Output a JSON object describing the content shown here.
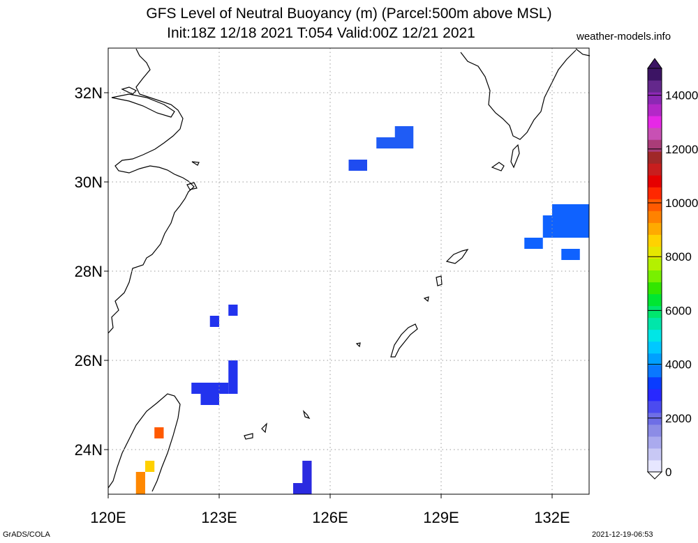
{
  "title_line1": "GFS Level of Neutral Buoyancy (m) (Parcel:500m above MSL)",
  "title_line2": "Init:18Z 12/18 2021 T:054 Valid:00Z 12/21 2021",
  "credit": "weather-models.info",
  "footer_left": "GrADS/COLA",
  "footer_right": "2021-12-19-06:53",
  "map": {
    "lon_range": [
      120,
      133
    ],
    "lat_range": [
      23,
      33
    ],
    "lon_ticks": [
      {
        "value": 120,
        "label": "120E"
      },
      {
        "value": 123,
        "label": "123E"
      },
      {
        "value": 126,
        "label": "126E"
      },
      {
        "value": 129,
        "label": "129E"
      },
      {
        "value": 132,
        "label": "132E"
      }
    ],
    "lat_ticks": [
      {
        "value": 32,
        "label": "32N"
      },
      {
        "value": 30,
        "label": "30N"
      },
      {
        "value": 28,
        "label": "28N"
      },
      {
        "value": 26,
        "label": "26N"
      },
      {
        "value": 24,
        "label": "24N"
      }
    ],
    "cells": [
      {
        "lon": 126.5,
        "lat": 30.25,
        "lon2": 127.0,
        "lat2": 30.5,
        "color": "#1f4cf0"
      },
      {
        "lon": 127.25,
        "lat": 30.75,
        "lon2": 128.25,
        "lat2": 31.0,
        "color": "#1f5cf5"
      },
      {
        "lon": 127.75,
        "lat": 31.0,
        "lon2": 128.25,
        "lat2": 31.25,
        "color": "#1f5cf5"
      },
      {
        "lon": 131.75,
        "lat": 28.75,
        "lon2": 133.0,
        "lat2": 29.25,
        "color": "#0f62ff"
      },
      {
        "lon": 132.0,
        "lat": 29.25,
        "lon2": 133.0,
        "lat2": 29.5,
        "color": "#0f62ff"
      },
      {
        "lon": 131.25,
        "lat": 28.5,
        "lon2": 131.75,
        "lat2": 28.75,
        "color": "#0f62ff"
      },
      {
        "lon": 132.25,
        "lat": 28.25,
        "lon2": 132.75,
        "lat2": 28.5,
        "color": "#0f62ff"
      },
      {
        "lon": 122.75,
        "lat": 26.75,
        "lon2": 123.0,
        "lat2": 27.0,
        "color": "#2233ee"
      },
      {
        "lon": 123.25,
        "lat": 27.0,
        "lon2": 123.5,
        "lat2": 27.25,
        "color": "#2233ee"
      },
      {
        "lon": 123.25,
        "lat": 25.25,
        "lon2": 123.5,
        "lat2": 26.0,
        "color": "#2233ee"
      },
      {
        "lon": 122.25,
        "lat": 25.25,
        "lon2": 123.25,
        "lat2": 25.5,
        "color": "#2233ee"
      },
      {
        "lon": 122.5,
        "lat": 25.0,
        "lon2": 123.0,
        "lat2": 25.25,
        "color": "#2233ee"
      },
      {
        "lon": 125.0,
        "lat": 23.0,
        "lon2": 125.5,
        "lat2": 23.25,
        "color": "#2a2ae0"
      },
      {
        "lon": 125.25,
        "lat": 23.25,
        "lon2": 125.5,
        "lat2": 23.75,
        "color": "#2a2ae0"
      },
      {
        "lon": 121.25,
        "lat": 24.25,
        "lon2": 121.5,
        "lat2": 24.5,
        "color": "#ff5a00"
      },
      {
        "lon": 121.0,
        "lat": 23.5,
        "lon2": 121.25,
        "lat2": 23.75,
        "color": "#ffd000"
      },
      {
        "lon": 120.75,
        "lat": 23.0,
        "lon2": 121.0,
        "lat2": 23.5,
        "color": "#ff8800"
      }
    ]
  },
  "colorbar": {
    "min": 0,
    "max": 15000,
    "tick_labels": [
      {
        "value": 0,
        "label": "0"
      },
      {
        "value": 2000,
        "label": "2000"
      },
      {
        "value": 4000,
        "label": "4000"
      },
      {
        "value": 6000,
        "label": "6000"
      },
      {
        "value": 8000,
        "label": "8000"
      },
      {
        "value": 10000,
        "label": "10000"
      },
      {
        "value": 12000,
        "label": "12000"
      },
      {
        "value": 14000,
        "label": "14000"
      }
    ],
    "colors": [
      "#e6e6ff",
      "#c8c8f5",
      "#aaaaee",
      "#8c8ce6",
      "#6e6ee6",
      "#4b4bf0",
      "#2828ff",
      "#0a3cff",
      "#0a78ff",
      "#00a0ff",
      "#00c8ff",
      "#00e6e6",
      "#00e6aa",
      "#00e66e",
      "#00e632",
      "#32e600",
      "#78f000",
      "#b4f000",
      "#e6e600",
      "#ffd200",
      "#ffaa00",
      "#ff8200",
      "#ff5a00",
      "#ff2800",
      "#e60000",
      "#c81e1e",
      "#a02828",
      "#aa3c78",
      "#c850b4",
      "#e628e6",
      "#b428c8",
      "#8c28b4",
      "#64288c",
      "#3c1464"
    ]
  }
}
